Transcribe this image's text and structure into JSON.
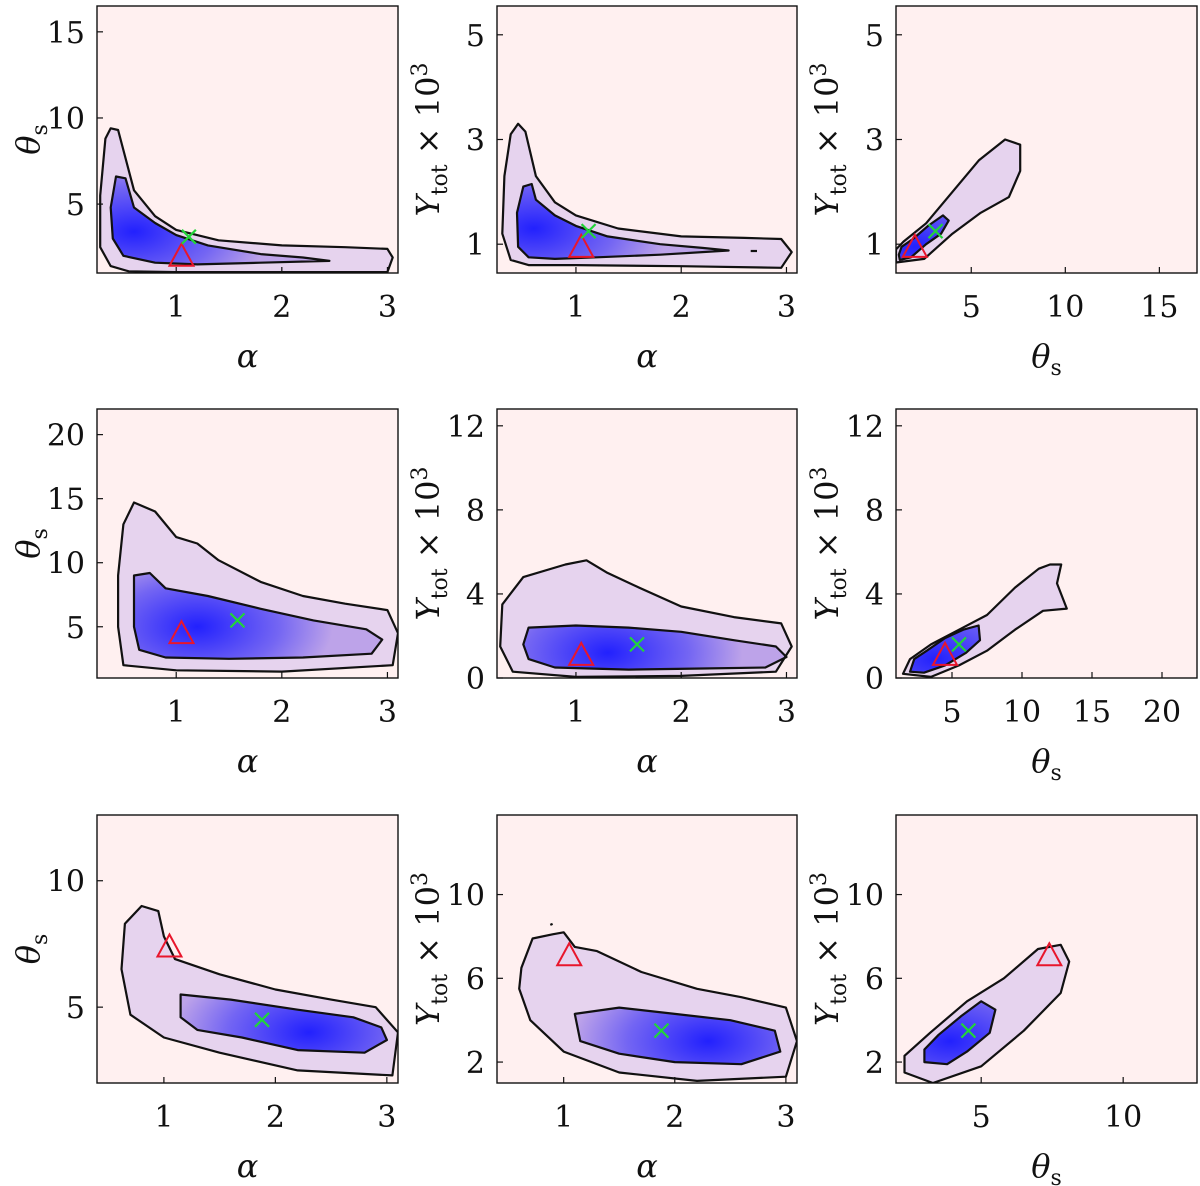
{
  "colors": {
    "background": "#fff0f0",
    "density_high": "#1a1aff",
    "density_mid": "#9b7ce6",
    "contour": "#111111",
    "triangle": "#e8162c",
    "cross": "#22d43a"
  },
  "chart_data": [
    {
      "type": "scatter",
      "panel": "row1-col1",
      "xlabel": "α",
      "ylabel": "θ",
      "ylabel_sub": "s",
      "xlim": [
        0.25,
        3.1
      ],
      "ylim": [
        1.0,
        16.5
      ],
      "xticks": [
        1,
        2,
        3
      ],
      "yticks": [
        5,
        10,
        15
      ],
      "density_peak": [
        0.6,
        3.4
      ],
      "contour_inner": [
        [
          0.43,
          6.6
        ],
        [
          0.52,
          6.5
        ],
        [
          0.6,
          4.8
        ],
        [
          0.8,
          3.9
        ],
        [
          1.0,
          3.2
        ],
        [
          1.3,
          2.6
        ],
        [
          1.8,
          2.1
        ],
        [
          2.2,
          1.9
        ],
        [
          2.45,
          1.7
        ],
        [
          1.8,
          1.6
        ],
        [
          1.2,
          1.5
        ],
        [
          0.8,
          1.6
        ],
        [
          0.5,
          2.0
        ],
        [
          0.4,
          3.0
        ],
        [
          0.38,
          4.8
        ],
        [
          0.43,
          6.6
        ]
      ],
      "contour_outer": [
        [
          0.33,
          8.8
        ],
        [
          0.38,
          9.4
        ],
        [
          0.45,
          9.3
        ],
        [
          0.6,
          5.8
        ],
        [
          0.8,
          4.3
        ],
        [
          1.0,
          3.5
        ],
        [
          1.4,
          2.9
        ],
        [
          2.0,
          2.6
        ],
        [
          2.6,
          2.5
        ],
        [
          3.0,
          2.4
        ],
        [
          3.05,
          1.9
        ],
        [
          3.0,
          1.05
        ],
        [
          2.0,
          1.05
        ],
        [
          1.0,
          1.05
        ],
        [
          0.55,
          1.1
        ],
        [
          0.38,
          1.4
        ],
        [
          0.28,
          2.5
        ],
        [
          0.28,
          5.5
        ],
        [
          0.33,
          8.8
        ]
      ],
      "triangle": [
        1.05,
        2.0
      ],
      "cross": [
        1.12,
        3.1
      ]
    },
    {
      "type": "scatter",
      "panel": "row1-col2",
      "xlabel": "α",
      "ylabel": "Y",
      "ylabel_sub": "tot",
      "ylabel_suffix": "× 10",
      "ylabel_sup": "3",
      "xlim": [
        0.25,
        3.1
      ],
      "ylim": [
        0.45,
        5.55
      ],
      "xticks": [
        1,
        2,
        3
      ],
      "yticks": [
        1,
        3,
        5
      ],
      "density_peak": [
        0.6,
        1.3
      ],
      "contour_inner": [
        [
          0.5,
          2.1
        ],
        [
          0.58,
          2.15
        ],
        [
          0.62,
          1.85
        ],
        [
          0.8,
          1.55
        ],
        [
          1.0,
          1.35
        ],
        [
          1.3,
          1.15
        ],
        [
          1.8,
          1.0
        ],
        [
          2.2,
          0.93
        ],
        [
          2.45,
          0.88
        ],
        [
          1.8,
          0.8
        ],
        [
          1.2,
          0.75
        ],
        [
          0.8,
          0.72
        ],
        [
          0.55,
          0.75
        ],
        [
          0.45,
          0.95
        ],
        [
          0.44,
          1.6
        ],
        [
          0.5,
          2.1
        ]
      ],
      "contour_outer": [
        [
          0.38,
          3.1
        ],
        [
          0.45,
          3.3
        ],
        [
          0.52,
          3.15
        ],
        [
          0.62,
          2.3
        ],
        [
          0.8,
          1.8
        ],
        [
          1.0,
          1.55
        ],
        [
          1.4,
          1.3
        ],
        [
          2.0,
          1.15
        ],
        [
          2.6,
          1.12
        ],
        [
          2.95,
          1.1
        ],
        [
          3.05,
          0.85
        ],
        [
          2.95,
          0.55
        ],
        [
          2.0,
          0.58
        ],
        [
          1.0,
          0.6
        ],
        [
          0.55,
          0.6
        ],
        [
          0.38,
          0.7
        ],
        [
          0.3,
          1.2
        ],
        [
          0.32,
          2.3
        ],
        [
          0.38,
          3.1
        ]
      ],
      "contour_islands": [
        [
          [
            2.66,
            0.87
          ],
          [
            2.72,
            0.87
          ]
        ]
      ],
      "triangle": [
        1.05,
        0.95
      ],
      "cross": [
        1.12,
        1.25
      ]
    },
    {
      "type": "scatter",
      "panel": "row1-col3",
      "xlabel": "θ",
      "xlabel_sub": "s",
      "ylabel": "Y",
      "ylabel_sub": "tot",
      "ylabel_suffix": "× 10",
      "ylabel_sup": "3",
      "xlim": [
        1.0,
        17.0
      ],
      "ylim": [
        0.45,
        5.55
      ],
      "xticks": [
        5,
        10,
        15
      ],
      "yticks": [
        1,
        3,
        5
      ],
      "density_peak": [
        2.0,
        0.95
      ],
      "contour_inner": [
        [
          1.2,
          0.7
        ],
        [
          1.8,
          0.75
        ],
        [
          2.6,
          1.0
        ],
        [
          3.4,
          1.2
        ],
        [
          3.8,
          1.45
        ],
        [
          3.5,
          1.55
        ],
        [
          2.7,
          1.35
        ],
        [
          1.9,
          1.1
        ],
        [
          1.3,
          0.95
        ],
        [
          1.15,
          0.8
        ],
        [
          1.2,
          0.7
        ]
      ],
      "contour_outer": [
        [
          1.0,
          0.65
        ],
        [
          2.5,
          0.72
        ],
        [
          4.0,
          1.2
        ],
        [
          5.5,
          1.6
        ],
        [
          7.0,
          1.9
        ],
        [
          7.6,
          2.4
        ],
        [
          7.6,
          2.9
        ],
        [
          6.8,
          3.0
        ],
        [
          5.4,
          2.6
        ],
        [
          4.0,
          2.0
        ],
        [
          2.6,
          1.4
        ],
        [
          1.4,
          1.05
        ],
        [
          1.0,
          0.9
        ]
      ],
      "triangle": [
        2.0,
        0.95
      ],
      "cross": [
        3.1,
        1.25
      ]
    },
    {
      "type": "scatter",
      "panel": "row2-col1",
      "xlabel": "α",
      "ylabel": "θ",
      "ylabel_sub": "s",
      "xlim": [
        0.25,
        3.1
      ],
      "ylim": [
        1.0,
        22.0
      ],
      "xticks": [
        1,
        2,
        3
      ],
      "yticks": [
        5,
        10,
        15,
        20
      ],
      "density_peak": [
        1.2,
        5.0
      ],
      "contour_inner": [
        [
          0.6,
          9.0
        ],
        [
          0.75,
          9.2
        ],
        [
          0.9,
          8.0
        ],
        [
          1.3,
          7.4
        ],
        [
          1.8,
          6.4
        ],
        [
          2.3,
          5.5
        ],
        [
          2.8,
          4.8
        ],
        [
          2.95,
          4.0
        ],
        [
          2.85,
          2.9
        ],
        [
          2.2,
          2.6
        ],
        [
          1.5,
          2.5
        ],
        [
          0.9,
          2.6
        ],
        [
          0.65,
          3.2
        ],
        [
          0.6,
          5.0
        ],
        [
          0.6,
          9.0
        ]
      ],
      "contour_outer": [
        [
          0.5,
          13.0
        ],
        [
          0.6,
          14.7
        ],
        [
          0.8,
          14.0
        ],
        [
          1.0,
          12.0
        ],
        [
          1.2,
          11.5
        ],
        [
          1.4,
          10.2
        ],
        [
          1.8,
          8.5
        ],
        [
          2.2,
          7.4
        ],
        [
          2.6,
          6.8
        ],
        [
          3.0,
          6.3
        ],
        [
          3.1,
          4.5
        ],
        [
          3.05,
          2.0
        ],
        [
          2.0,
          1.5
        ],
        [
          1.0,
          1.6
        ],
        [
          0.5,
          2.0
        ],
        [
          0.45,
          5.0
        ],
        [
          0.45,
          9.0
        ],
        [
          0.5,
          13.0
        ]
      ],
      "triangle": [
        1.05,
        4.5
      ],
      "cross": [
        1.58,
        5.5
      ]
    },
    {
      "type": "scatter",
      "panel": "row2-col2",
      "xlabel": "α",
      "ylabel": "Y",
      "ylabel_sub": "tot",
      "ylabel_suffix": "× 10",
      "ylabel_sup": "3",
      "xlim": [
        0.25,
        3.1
      ],
      "ylim": [
        0,
        12.8
      ],
      "xticks": [
        1,
        2,
        3
      ],
      "yticks": [
        0,
        4,
        8,
        12
      ],
      "density_peak": [
        1.3,
        1.2
      ],
      "contour_inner": [
        [
          0.55,
          2.4
        ],
        [
          1.0,
          2.5
        ],
        [
          1.5,
          2.4
        ],
        [
          2.0,
          2.2
        ],
        [
          2.5,
          1.8
        ],
        [
          2.9,
          1.5
        ],
        [
          3.0,
          1.0
        ],
        [
          2.8,
          0.5
        ],
        [
          2.2,
          0.45
        ],
        [
          1.5,
          0.4
        ],
        [
          0.8,
          0.5
        ],
        [
          0.55,
          0.9
        ],
        [
          0.5,
          1.6
        ],
        [
          0.55,
          2.4
        ]
      ],
      "contour_outer": [
        [
          0.3,
          3.5
        ],
        [
          0.5,
          4.8
        ],
        [
          0.9,
          5.4
        ],
        [
          1.1,
          5.6
        ],
        [
          1.3,
          5.0
        ],
        [
          1.6,
          4.3
        ],
        [
          2.0,
          3.4
        ],
        [
          2.5,
          2.9
        ],
        [
          2.95,
          2.6
        ],
        [
          3.05,
          1.5
        ],
        [
          2.9,
          0.3
        ],
        [
          2.0,
          0.1
        ],
        [
          1.0,
          0.05
        ],
        [
          0.4,
          0.3
        ],
        [
          0.28,
          1.5
        ],
        [
          0.3,
          3.5
        ]
      ],
      "triangle": [
        1.05,
        1.1
      ],
      "cross": [
        1.58,
        1.6
      ]
    },
    {
      "type": "scatter",
      "panel": "row2-col3",
      "xlabel": "θ",
      "xlabel_sub": "s",
      "ylabel": "Y",
      "ylabel_sub": "tot",
      "ylabel_suffix": "× 10",
      "ylabel_sup": "3",
      "xlim": [
        1.0,
        22.5
      ],
      "ylim": [
        0,
        12.8
      ],
      "xticks": [
        5,
        10,
        15,
        20
      ],
      "yticks": [
        0,
        4,
        8,
        12
      ],
      "density_peak": [
        3.8,
        0.9
      ],
      "contour_inner": [
        [
          2.0,
          0.3
        ],
        [
          3.0,
          0.25
        ],
        [
          4.5,
          0.6
        ],
        [
          6.0,
          1.2
        ],
        [
          7.0,
          1.8
        ],
        [
          6.9,
          2.5
        ],
        [
          5.8,
          2.3
        ],
        [
          4.5,
          1.9
        ],
        [
          3.2,
          1.3
        ],
        [
          2.3,
          0.9
        ],
        [
          2.0,
          0.3
        ]
      ],
      "contour_outer": [
        [
          1.5,
          0.2
        ],
        [
          3.5,
          0.05
        ],
        [
          5.5,
          0.6
        ],
        [
          7.5,
          1.3
        ],
        [
          9.5,
          2.3
        ],
        [
          11.5,
          3.2
        ],
        [
          13.2,
          3.3
        ],
        [
          12.5,
          4.5
        ],
        [
          12.8,
          5.4
        ],
        [
          12.0,
          5.4
        ],
        [
          11.2,
          5.2
        ],
        [
          9.5,
          4.3
        ],
        [
          7.5,
          3.0
        ],
        [
          5.5,
          2.3
        ],
        [
          3.5,
          1.6
        ],
        [
          2.0,
          0.9
        ],
        [
          1.5,
          0.2
        ]
      ],
      "triangle": [
        4.5,
        1.1
      ],
      "cross": [
        5.5,
        1.6
      ]
    },
    {
      "type": "scatter",
      "panel": "row3-col1",
      "xlabel": "α",
      "ylabel": "θ",
      "ylabel_sub": "s",
      "xlim": [
        0.4,
        3.1
      ],
      "ylim": [
        2.0,
        12.6
      ],
      "xticks": [
        1,
        2,
        3
      ],
      "yticks": [
        5,
        10
      ],
      "density_peak": [
        2.3,
        4.0
      ],
      "contour_inner": [
        [
          1.15,
          5.5
        ],
        [
          1.6,
          5.3
        ],
        [
          2.2,
          4.9
        ],
        [
          2.7,
          4.6
        ],
        [
          2.95,
          4.2
        ],
        [
          3.0,
          3.7
        ],
        [
          2.8,
          3.2
        ],
        [
          2.2,
          3.3
        ],
        [
          1.7,
          3.8
        ],
        [
          1.3,
          4.1
        ],
        [
          1.15,
          4.6
        ],
        [
          1.15,
          5.5
        ]
      ],
      "contour_outer": [
        [
          0.65,
          8.3
        ],
        [
          0.8,
          9.0
        ],
        [
          0.95,
          8.8
        ],
        [
          1.0,
          7.8
        ],
        [
          1.1,
          6.9
        ],
        [
          1.5,
          6.3
        ],
        [
          2.0,
          5.7
        ],
        [
          2.5,
          5.3
        ],
        [
          2.9,
          5.0
        ],
        [
          3.1,
          4.0
        ],
        [
          3.05,
          2.3
        ],
        [
          2.2,
          2.5
        ],
        [
          1.5,
          3.2
        ],
        [
          1.0,
          3.8
        ],
        [
          0.7,
          4.7
        ],
        [
          0.62,
          6.5
        ],
        [
          0.65,
          8.3
        ]
      ],
      "triangle": [
        1.05,
        7.4
      ],
      "cross": [
        1.88,
        4.5
      ]
    },
    {
      "type": "scatter",
      "panel": "row3-col2",
      "xlabel": "α",
      "ylabel": "Y",
      "ylabel_sub": "tot",
      "ylabel_suffix": "× 10",
      "ylabel_sup": "3",
      "xlim": [
        0.4,
        3.1
      ],
      "ylim": [
        1.0,
        13.8
      ],
      "xticks": [
        1,
        2,
        3
      ],
      "yticks": [
        2,
        6,
        10
      ],
      "density_peak": [
        2.3,
        3.0
      ],
      "contour_inner": [
        [
          1.1,
          4.3
        ],
        [
          1.5,
          4.6
        ],
        [
          2.0,
          4.3
        ],
        [
          2.5,
          4.0
        ],
        [
          2.9,
          3.5
        ],
        [
          2.95,
          2.5
        ],
        [
          2.6,
          1.9
        ],
        [
          2.0,
          2.0
        ],
        [
          1.5,
          2.4
        ],
        [
          1.15,
          3.0
        ],
        [
          1.1,
          4.3
        ]
      ],
      "contour_outer": [
        [
          0.62,
          6.5
        ],
        [
          0.72,
          7.9
        ],
        [
          0.9,
          8.1
        ],
        [
          1.0,
          8.2
        ],
        [
          1.1,
          7.5
        ],
        [
          1.3,
          7.3
        ],
        [
          1.7,
          6.3
        ],
        [
          2.2,
          5.5
        ],
        [
          2.6,
          5.1
        ],
        [
          3.0,
          4.6
        ],
        [
          3.1,
          3.0
        ],
        [
          3.0,
          1.3
        ],
        [
          2.2,
          1.1
        ],
        [
          1.5,
          1.5
        ],
        [
          1.0,
          2.5
        ],
        [
          0.7,
          4.0
        ],
        [
          0.6,
          5.5
        ],
        [
          0.62,
          6.5
        ]
      ],
      "contour_islands": [
        [
          [
            0.88,
            8.55
          ],
          [
            0.9,
            8.6
          ]
        ]
      ],
      "triangle": [
        1.05,
        7.1
      ],
      "cross": [
        1.88,
        3.5
      ]
    },
    {
      "type": "scatter",
      "panel": "row3-col3",
      "xlabel": "θ",
      "xlabel_sub": "s",
      "ylabel": "Y",
      "ylabel_sub": "tot",
      "ylabel_suffix": "× 10",
      "ylabel_sup": "3",
      "xlim": [
        2.0,
        12.6
      ],
      "ylim": [
        1.0,
        13.8
      ],
      "xticks": [
        5,
        10
      ],
      "yticks": [
        2,
        6,
        10
      ],
      "density_peak": [
        3.9,
        3.0
      ],
      "contour_inner": [
        [
          3.0,
          2.0
        ],
        [
          3.8,
          1.9
        ],
        [
          4.5,
          2.5
        ],
        [
          5.3,
          3.4
        ],
        [
          5.5,
          4.5
        ],
        [
          5.0,
          4.9
        ],
        [
          4.3,
          4.2
        ],
        [
          3.5,
          3.3
        ],
        [
          3.0,
          2.6
        ],
        [
          3.0,
          2.0
        ]
      ],
      "contour_outer": [
        [
          2.3,
          1.5
        ],
        [
          3.3,
          1.0
        ],
        [
          5.0,
          1.8
        ],
        [
          6.5,
          3.5
        ],
        [
          7.8,
          5.3
        ],
        [
          8.1,
          6.8
        ],
        [
          7.8,
          7.6
        ],
        [
          7.0,
          7.4
        ],
        [
          5.8,
          6.0
        ],
        [
          4.5,
          4.9
        ],
        [
          3.2,
          3.4
        ],
        [
          2.3,
          2.3
        ],
        [
          2.3,
          1.5
        ]
      ],
      "triangle": [
        7.4,
        7.1
      ],
      "cross": [
        4.55,
        3.5
      ]
    }
  ]
}
